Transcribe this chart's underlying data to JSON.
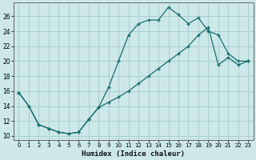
{
  "xlabel": "Humidex (Indice chaleur)",
  "ylabel": "",
  "bg_color": "#cce8e8",
  "grid_color": "#aacece",
  "line_color": "#1a6e6e",
  "xlim": [
    -0.5,
    23.5
  ],
  "ylim": [
    9.5,
    27.8
  ],
  "xticks": [
    0,
    1,
    2,
    3,
    4,
    5,
    6,
    7,
    8,
    9,
    10,
    11,
    12,
    13,
    14,
    15,
    16,
    17,
    18,
    19,
    20,
    21,
    22,
    23
  ],
  "yticks": [
    10,
    12,
    14,
    16,
    18,
    20,
    22,
    24,
    26
  ],
  "line1_x": [
    0,
    1,
    2,
    3,
    4,
    5,
    6,
    7,
    8,
    9,
    10,
    11,
    12,
    13,
    14,
    15,
    16,
    17,
    18,
    19,
    20,
    21,
    22,
    23
  ],
  "line1_y": [
    15.8,
    14.0,
    11.5,
    11.0,
    10.5,
    10.3,
    10.5,
    12.2,
    13.8,
    16.5,
    20.0,
    23.5,
    25.0,
    25.5,
    25.5,
    27.2,
    26.2,
    25.0,
    25.8,
    24.0,
    23.5,
    21.0,
    20.0,
    20.0
  ],
  "line2_x": [
    0,
    1,
    2,
    3,
    4,
    5,
    6,
    7,
    8,
    9,
    10,
    11,
    12,
    13,
    14,
    15,
    16,
    17,
    18,
    19,
    20,
    21,
    22,
    23
  ],
  "line2_y": [
    15.8,
    14.0,
    11.5,
    11.0,
    10.5,
    10.3,
    10.5,
    12.2,
    13.8,
    14.5,
    15.2,
    16.0,
    17.0,
    18.0,
    19.0,
    20.0,
    21.0,
    22.0,
    23.5,
    24.5,
    19.5,
    20.5,
    19.5,
    20.0
  ]
}
